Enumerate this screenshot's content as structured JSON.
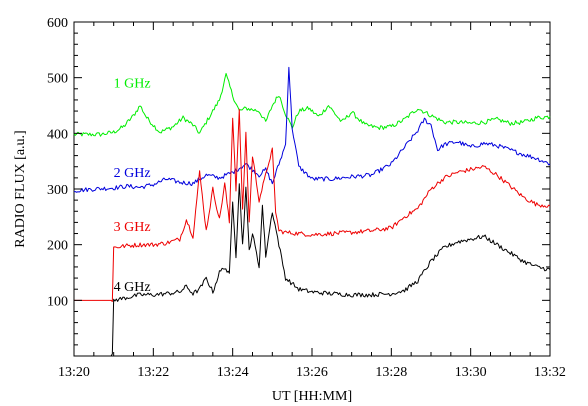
{
  "chart_data": {
    "type": "line",
    "title": "",
    "xlabel": "UT [HH:MM]",
    "ylabel": "RADIO FLUX [a.u.]",
    "xlim": [
      "13:20",
      "13:32"
    ],
    "ylim": [
      0,
      600
    ],
    "x_ticks": [
      "13:20",
      "13:22",
      "13:24",
      "13:26",
      "13:28",
      "13:30",
      "13:32"
    ],
    "y_ticks": [
      100,
      200,
      300,
      400,
      500,
      600
    ],
    "grid": false,
    "series": [
      {
        "name": "1 GHz",
        "color": "#00ee00",
        "x": [
          "13:20:00",
          "13:20:40",
          "13:21:00",
          "13:21:15",
          "13:21:30",
          "13:21:40",
          "13:21:50",
          "13:22:10",
          "13:22:30",
          "13:22:45",
          "13:23:00",
          "13:23:10",
          "13:23:20",
          "13:23:40",
          "13:23:50",
          "13:24:00",
          "13:24:10",
          "13:24:20",
          "13:24:40",
          "13:24:50",
          "13:25:00",
          "13:25:10",
          "13:25:20",
          "13:25:30",
          "13:25:40",
          "13:25:55",
          "13:26:10",
          "13:26:25",
          "13:26:45",
          "13:27:00",
          "13:27:20",
          "13:27:40",
          "13:28:00",
          "13:28:20",
          "13:28:40",
          "13:29:00",
          "13:29:20",
          "13:29:40",
          "13:30:00",
          "13:30:20",
          "13:30:40",
          "13:31:00",
          "13:31:20",
          "13:31:40",
          "13:32:00"
        ],
        "values": [
          398,
          398,
          402,
          412,
          432,
          450,
          428,
          402,
          412,
          428,
          415,
          400,
          420,
          460,
          505,
          468,
          440,
          445,
          440,
          420,
          450,
          470,
          435,
          410,
          440,
          445,
          430,
          450,
          420,
          438,
          415,
          410,
          412,
          425,
          445,
          432,
          420,
          420,
          418,
          420,
          425,
          418,
          420,
          428,
          430
        ]
      },
      {
        "name": "2 GHz",
        "color": "#0000dd",
        "x": [
          "13:20:00",
          "13:20:30",
          "13:21:00",
          "13:21:20",
          "13:21:40",
          "13:22:00",
          "13:22:20",
          "13:22:40",
          "13:23:00",
          "13:23:20",
          "13:23:40",
          "13:24:00",
          "13:24:20",
          "13:24:40",
          "13:24:50",
          "13:25:00",
          "13:25:10",
          "13:25:20",
          "13:25:25",
          "13:25:30",
          "13:25:40",
          "13:26:00",
          "13:26:30",
          "13:27:00",
          "13:27:30",
          "13:28:00",
          "13:28:20",
          "13:28:40",
          "13:28:50",
          "13:29:00",
          "13:29:10",
          "13:29:20",
          "13:29:40",
          "13:30:00",
          "13:30:20",
          "13:30:40",
          "13:31:00",
          "13:31:20",
          "13:31:40",
          "13:32:00"
        ],
        "values": [
          297,
          300,
          302,
          305,
          303,
          308,
          318,
          312,
          310,
          325,
          320,
          330,
          345,
          325,
          335,
          310,
          345,
          380,
          520,
          410,
          340,
          318,
          318,
          322,
          325,
          345,
          375,
          405,
          425,
          415,
          370,
          380,
          385,
          375,
          382,
          378,
          370,
          362,
          355,
          345
        ]
      },
      {
        "name": "3 GHz",
        "color": "#ee0000",
        "x": [
          "13:20:00",
          "13:20:58",
          "13:21:00",
          "13:21:20",
          "13:21:40",
          "13:22:00",
          "13:22:20",
          "13:22:40",
          "13:22:50",
          "13:23:00",
          "13:23:10",
          "13:23:20",
          "13:23:30",
          "13:23:40",
          "13:23:48",
          "13:23:55",
          "13:24:00",
          "13:24:05",
          "13:24:10",
          "13:24:15",
          "13:24:20",
          "13:24:25",
          "13:24:30",
          "13:24:40",
          "13:24:50",
          "13:24:55",
          "13:25:00",
          "13:25:05",
          "13:25:10",
          "13:25:20",
          "13:25:40",
          "13:26:00",
          "13:26:30",
          "13:27:00",
          "13:27:30",
          "13:28:00",
          "13:28:20",
          "13:28:40",
          "13:29:00",
          "13:29:20",
          "13:29:40",
          "13:30:00",
          "13:30:20",
          "13:30:40",
          "13:31:00",
          "13:31:20",
          "13:31:40",
          "13:32:00"
        ],
        "values": [
          100,
          100,
          195,
          198,
          200,
          200,
          203,
          210,
          245,
          215,
          330,
          225,
          300,
          245,
          310,
          240,
          430,
          300,
          440,
          260,
          400,
          240,
          360,
          280,
          325,
          350,
          370,
          260,
          225,
          222,
          220,
          218,
          220,
          222,
          225,
          230,
          250,
          265,
          300,
          320,
          330,
          335,
          340,
          325,
          305,
          285,
          272,
          270
        ]
      },
      {
        "name": "4 GHz",
        "color": "#000000",
        "x": [
          "13:20:00",
          "13:20:58",
          "13:21:00",
          "13:21:20",
          "13:21:40",
          "13:22:00",
          "13:22:20",
          "13:22:40",
          "13:22:50",
          "13:23:00",
          "13:23:10",
          "13:23:20",
          "13:23:30",
          "13:23:40",
          "13:23:48",
          "13:23:55",
          "13:24:00",
          "13:24:05",
          "13:24:10",
          "13:24:15",
          "13:24:20",
          "13:24:25",
          "13:24:30",
          "13:24:40",
          "13:24:45",
          "13:24:50",
          "13:25:00",
          "13:25:10",
          "13:25:20",
          "13:25:40",
          "13:26:00",
          "13:26:30",
          "13:27:00",
          "13:27:30",
          "13:28:00",
          "13:28:20",
          "13:28:40",
          "13:29:00",
          "13:29:20",
          "13:29:40",
          "13:30:00",
          "13:30:20",
          "13:30:40",
          "13:31:00",
          "13:31:20",
          "13:31:40",
          "13:32:00"
        ],
        "values": [
          0,
          0,
          100,
          105,
          110,
          110,
          112,
          115,
          125,
          112,
          120,
          140,
          115,
          150,
          160,
          145,
          280,
          180,
          310,
          200,
          300,
          190,
          220,
          160,
          270,
          180,
          260,
          200,
          140,
          120,
          115,
          112,
          110,
          110,
          112,
          118,
          135,
          170,
          195,
          205,
          210,
          215,
          200,
          185,
          170,
          160,
          155
        ]
      }
    ],
    "labels": [
      {
        "text": "1 GHz",
        "series": "1 GHz",
        "x": "13:21:00",
        "y": 482
      },
      {
        "text": "2 GHz",
        "series": "2 GHz",
        "x": "13:21:00",
        "y": 322
      },
      {
        "text": "3 GHz",
        "series": "3 GHz",
        "x": "13:21:00",
        "y": 225
      },
      {
        "text": "4 GHz",
        "series": "4 GHz",
        "x": "13:21:00",
        "y": 117
      }
    ]
  }
}
